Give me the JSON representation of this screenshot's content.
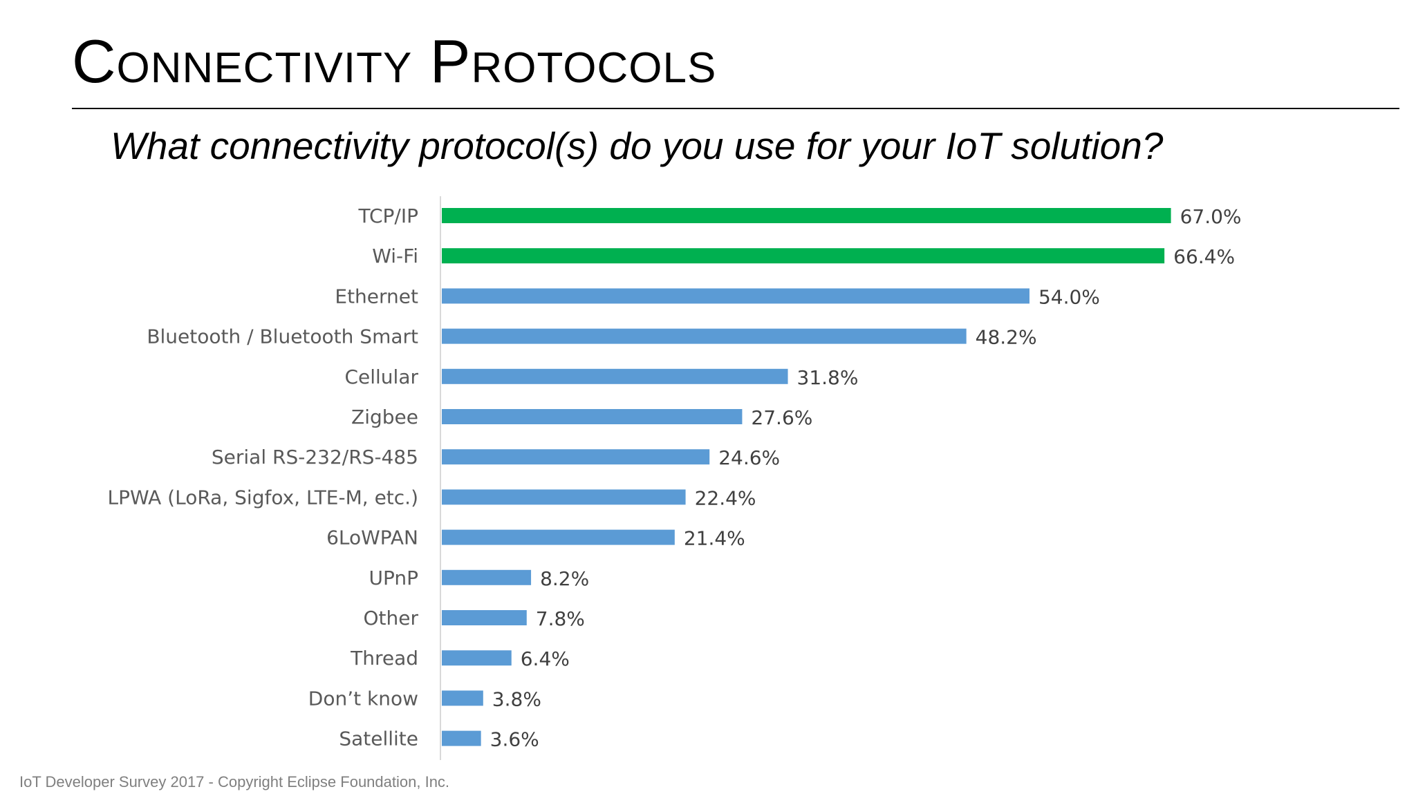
{
  "slide": {
    "title": "Connectivity Protocols",
    "question": "What connectivity protocol(s) do you use for your IoT solution?",
    "footer": "IoT Developer Survey 2017 - Copyright Eclipse Foundation, Inc."
  },
  "chart_data": {
    "type": "bar",
    "orientation": "horizontal",
    "categories": [
      "TCP/IP",
      "Wi-Fi",
      "Ethernet",
      "Bluetooth / Bluetooth Smart",
      "Cellular",
      "Zigbee",
      "Serial RS-232/RS-485",
      "LPWA (LoRa, Sigfox, LTE-M, etc.)",
      "6LoWPAN",
      "UPnP",
      "Other",
      "Thread",
      "Don’t know",
      "Satellite"
    ],
    "values": [
      67.0,
      66.4,
      54.0,
      48.2,
      31.8,
      27.6,
      24.6,
      22.4,
      21.4,
      8.2,
      7.8,
      6.4,
      3.8,
      3.6
    ],
    "value_labels": [
      "67.0%",
      "66.4%",
      "54.0%",
      "48.2%",
      "31.8%",
      "27.6%",
      "24.6%",
      "22.4%",
      "21.4%",
      "8.2%",
      "7.8%",
      "6.4%",
      "3.8%",
      "3.6%"
    ],
    "bar_colors": [
      "#00b050",
      "#00b050",
      "#5b9bd5",
      "#5b9bd5",
      "#5b9bd5",
      "#5b9bd5",
      "#5b9bd5",
      "#5b9bd5",
      "#5b9bd5",
      "#5b9bd5",
      "#5b9bd5",
      "#5b9bd5",
      "#5b9bd5",
      "#5b9bd5"
    ],
    "title": "",
    "xlabel": "",
    "ylabel": "",
    "xlim": [
      0,
      100
    ],
    "grid": false,
    "legend": "none",
    "axis_color": "#d9d9d9"
  }
}
